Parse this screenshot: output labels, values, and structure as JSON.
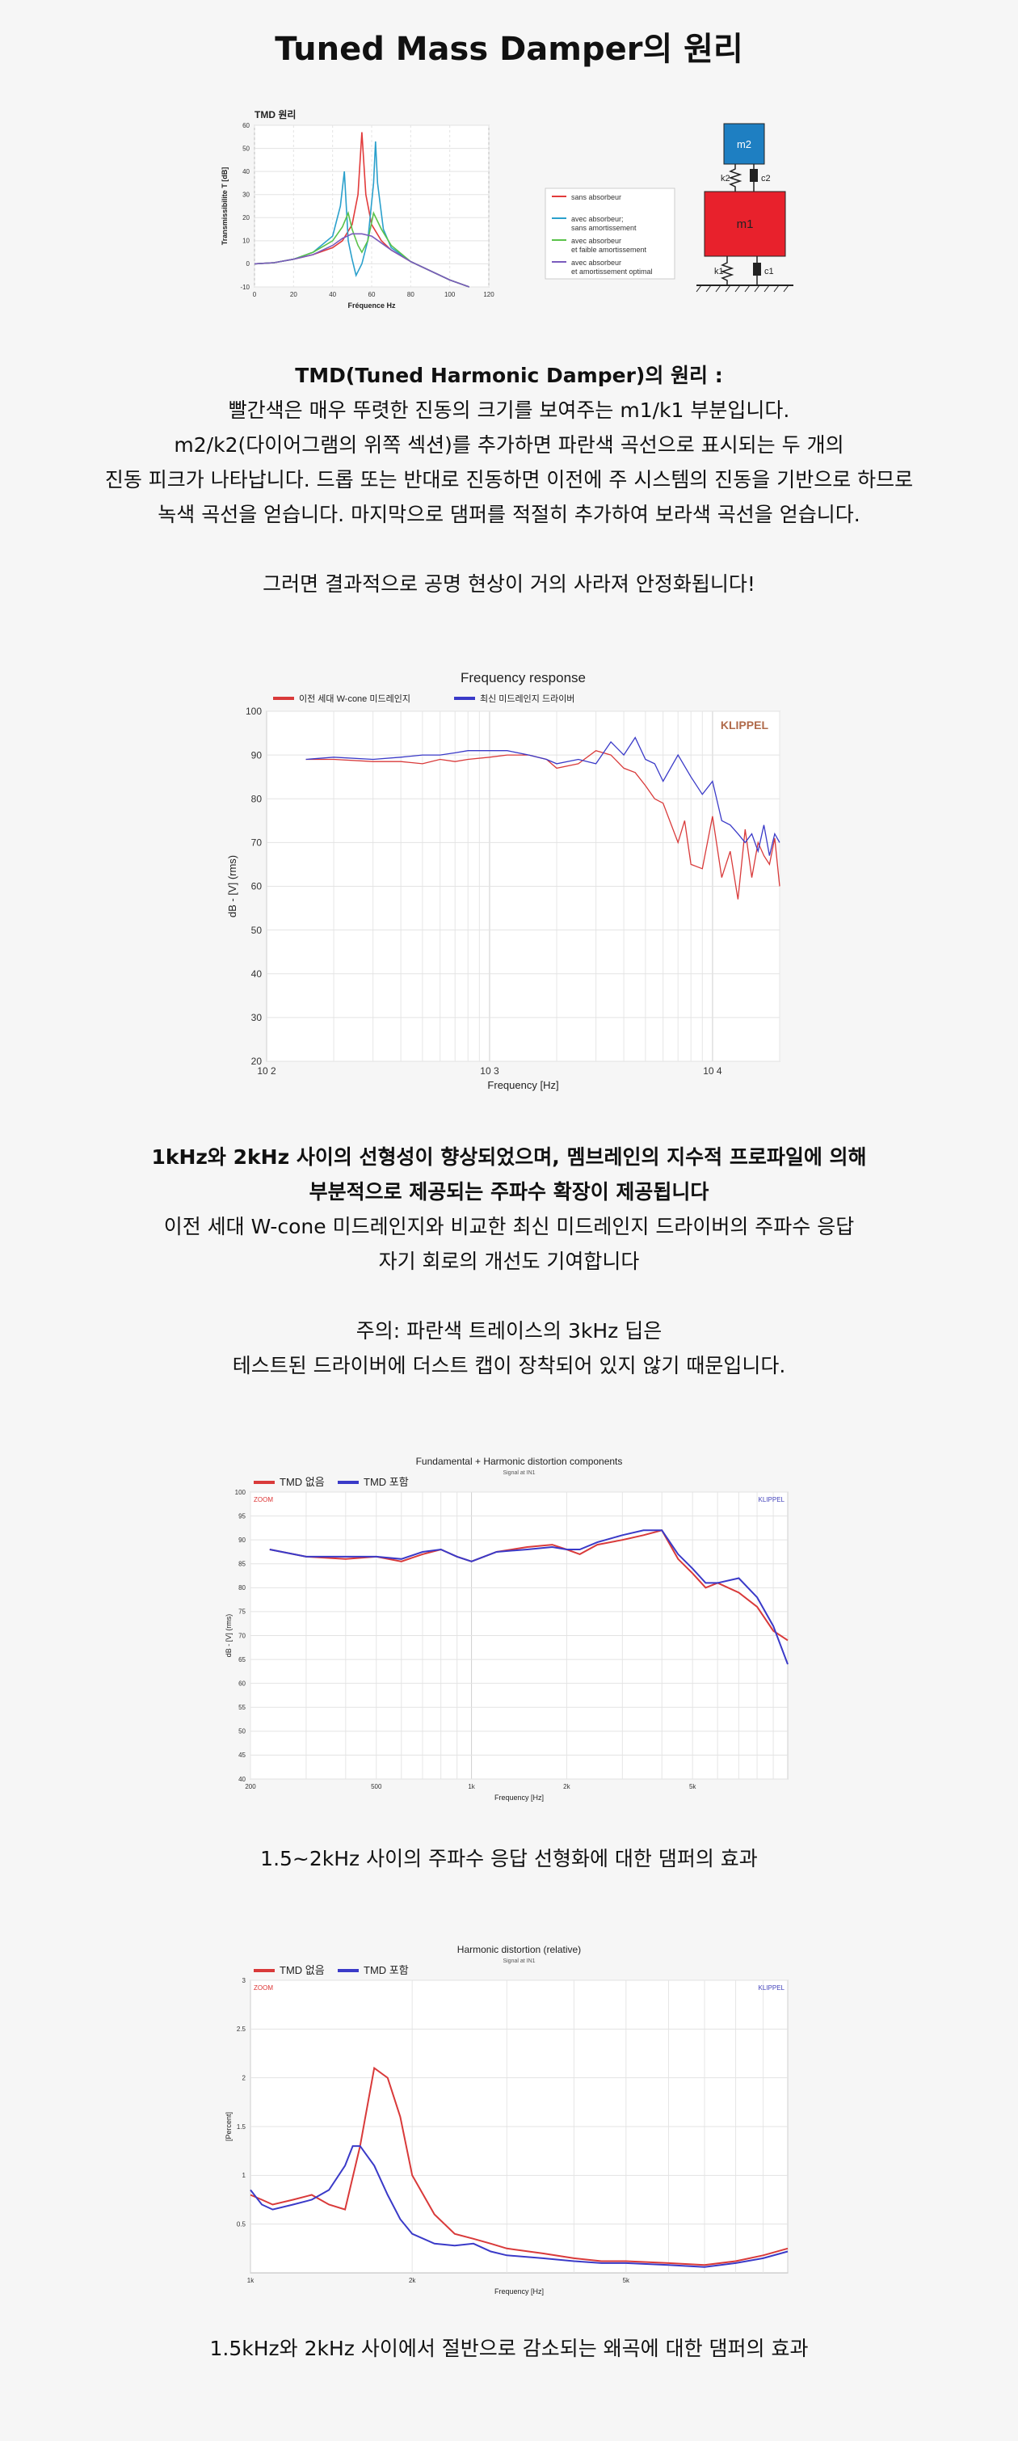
{
  "page": {
    "title": "Tuned Mass Damper의 원리",
    "tmd_heading": "TMD(Tuned Harmonic Damper)의 원리 :",
    "tmd_lines": [
      "빨간색은 매우 뚜렷한 진동의 크기를 보여주는 m1/k1 부분입니다.",
      "m2/k2(다이어그램의 위쪽 섹션)를 추가하면 파란색 곡선으로 표시되는 두 개의",
      "진동 피크가 나타납니다. 드롭 또는 반대로 진동하면 이전에 주 시스템의 진동을 기반으로 하므로",
      "녹색 곡선을 얻습니다. 마지막으로 댐퍼를 적절히 추가하여 보라색 곡선을 얻습니다."
    ],
    "tmd_result": "그러면 결과적으로 공명 현상이 거의 사라져 안정화됩니다!",
    "fr_heading_lines": [
      "1kHz와 2kHz 사이의 선형성이 향상되었으며, 멤브레인의 지수적 프로파일에 의해",
      "부분적으로 제공되는 주파수 확장이 제공됩니다"
    ],
    "fr_lines": [
      "이전 세대 W-cone 미드레인지와 비교한 최신 미드레인지 드라이버의 주파수 응답",
      "자기 회로의 개선도 기여합니다"
    ],
    "note_lines": [
      "주의: 파란색 트레이스의 3kHz 딥은",
      "테스트된 드라이버에 더스트 캡이 장착되어 있지 않기 때문입니다."
    ],
    "caption_3": "1.5~2kHz 사이의 주파수 응답 선형화에 대한 댐퍼의 효과",
    "caption_4": "1.5kHz와 2kHz 사이에서 절반으로 감소되는 왜곡에 대한 댐퍼의 효과"
  },
  "diagram": {
    "m2": "m2",
    "m1": "m1",
    "k2": "k2",
    "c2": "c2",
    "k1": "k1",
    "c1": "c1",
    "m2_color": "#1e7fc2",
    "m1_color": "#e8212c"
  },
  "chart_data": [
    {
      "type": "line",
      "title": "TMD 원리",
      "xlabel": "Fréquence Hz",
      "ylabel": "Transmissibilite T [dB]",
      "xlim": [
        0,
        120
      ],
      "ylim": [
        -10,
        60
      ],
      "xticks": [
        0,
        20,
        40,
        60,
        80,
        100,
        120
      ],
      "yticks": [
        -10,
        0,
        10,
        20,
        30,
        40,
        50,
        60
      ],
      "grid": true,
      "legend_position": "right",
      "series": [
        {
          "name": "sans absorbeur",
          "color": "#e23b3b",
          "x": [
            0,
            10,
            20,
            30,
            40,
            45,
            50,
            53,
            55,
            57,
            60,
            65,
            70,
            80,
            90,
            100,
            110
          ],
          "y": [
            0,
            0.5,
            2,
            4,
            7,
            10,
            17,
            30,
            57,
            30,
            17,
            10,
            6,
            1,
            -3,
            -7,
            -10
          ]
        },
        {
          "name": "avec absorbeur; sans amortissement",
          "color": "#2aa0cc",
          "x": [
            0,
            10,
            20,
            30,
            40,
            44,
            46,
            47,
            48,
            50,
            52,
            55,
            58,
            61,
            62,
            63,
            66,
            70,
            80,
            90,
            100,
            110
          ],
          "y": [
            0,
            0.5,
            2,
            5,
            12,
            25,
            40,
            25,
            10,
            2,
            -5,
            0,
            10,
            35,
            53,
            35,
            15,
            7,
            1,
            -3,
            -7,
            -10
          ]
        },
        {
          "name": "avec absorbeur et faible amortissement",
          "color": "#5ac24a",
          "x": [
            0,
            10,
            20,
            30,
            40,
            45,
            48,
            50,
            53,
            55,
            58,
            61,
            65,
            70,
            80,
            90,
            100,
            110
          ],
          "y": [
            0,
            0.5,
            2,
            5,
            10,
            16,
            22,
            15,
            8,
            5,
            10,
            22,
            15,
            8,
            1,
            -3,
            -7,
            -10
          ]
        },
        {
          "name": "avec absorbeur et amortissement optimal",
          "color": "#7a5bbd",
          "x": [
            0,
            10,
            20,
            30,
            40,
            45,
            50,
            55,
            60,
            65,
            70,
            80,
            90,
            100,
            110
          ],
          "y": [
            0,
            0.5,
            2,
            4,
            8,
            11,
            13,
            13,
            12,
            9,
            6,
            1,
            -3,
            -7,
            -10
          ]
        }
      ]
    },
    {
      "type": "line",
      "title": "Frequency response",
      "xlabel": "Frequency [Hz]",
      "ylabel": "dB - [V] (rms)",
      "xscale": "log",
      "xlim": [
        100,
        20000
      ],
      "ylim": [
        20,
        100
      ],
      "xtick_labels": [
        "10 2",
        "10 3",
        "10 4"
      ],
      "yticks": [
        20,
        30,
        40,
        50,
        60,
        70,
        80,
        90,
        100
      ],
      "grid": true,
      "watermark": "KLIPPEL",
      "legend_position": "top-left",
      "series": [
        {
          "name": "이전 세대 W-cone 미드레인지",
          "color": "#d93a3a",
          "x": [
            150,
            200,
            300,
            400,
            500,
            600,
            700,
            800,
            1000,
            1200,
            1500,
            1800,
            2000,
            2500,
            3000,
            3500,
            4000,
            4500,
            5000,
            5500,
            6000,
            7000,
            7500,
            8000,
            9000,
            10000,
            11000,
            12000,
            13000,
            14000,
            15000,
            16000,
            17000,
            18000,
            19000,
            20000
          ],
          "y": [
            89,
            89,
            88.5,
            88.5,
            88,
            89,
            88.5,
            89,
            89.5,
            90,
            90,
            89,
            87,
            88,
            91,
            90,
            87,
            86,
            83,
            80,
            79,
            70,
            75,
            65,
            64,
            76,
            62,
            68,
            57,
            73,
            62,
            70,
            67,
            65,
            71,
            60
          ]
        },
        {
          "name": "최신 미드레인지 드라이버",
          "color": "#3a3ac8",
          "x": [
            150,
            200,
            300,
            400,
            500,
            600,
            700,
            800,
            1000,
            1200,
            1500,
            1800,
            2000,
            2500,
            3000,
            3500,
            4000,
            4500,
            5000,
            5500,
            6000,
            7000,
            8000,
            9000,
            10000,
            11000,
            12000,
            13000,
            14000,
            15000,
            16000,
            17000,
            18000,
            19000,
            20000
          ],
          "y": [
            89,
            89.5,
            89,
            89.5,
            90,
            90,
            90.5,
            91,
            91,
            91,
            90,
            89,
            88,
            89,
            88,
            93,
            90,
            94,
            89,
            88,
            84,
            90,
            85,
            81,
            84,
            75,
            74,
            72,
            70,
            72,
            68,
            74,
            67,
            72,
            70
          ]
        }
      ]
    },
    {
      "type": "line",
      "title": "Fundamental + Harmonic distortion components",
      "subtitle": "Signal at IN1",
      "xlabel": "Frequency [Hz]",
      "ylabel": "dB - [V] (rms)",
      "xscale": "log",
      "xlim": [
        200,
        10000
      ],
      "ylim": [
        40,
        100
      ],
      "xtick_labels": [
        "200",
        "500",
        "1k",
        "2k",
        "5k"
      ],
      "yticks": [
        40,
        45,
        50,
        55,
        60,
        65,
        70,
        75,
        80,
        85,
        90,
        95,
        100
      ],
      "grid": true,
      "corner_labels": [
        "ZOOM",
        "KLIPPEL"
      ],
      "legend_position": "top-left",
      "series": [
        {
          "name": "TMD 없음",
          "color": "#d93a3a",
          "x": [
            230,
            300,
            400,
            500,
            600,
            700,
            800,
            900,
            1000,
            1200,
            1500,
            1800,
            2000,
            2200,
            2500,
            3000,
            3500,
            4000,
            4500,
            5000,
            5500,
            6000,
            7000,
            8000,
            9000,
            10000
          ],
          "y": [
            88,
            86.5,
            86,
            86.5,
            85.5,
            87,
            88,
            86.5,
            85.5,
            87.5,
            88.5,
            89,
            88,
            87,
            89,
            90,
            91,
            92,
            86,
            83,
            80,
            81,
            79,
            76,
            71,
            69
          ]
        },
        {
          "name": "TMD 포함",
          "color": "#3a3ac8",
          "x": [
            230,
            300,
            400,
            500,
            600,
            700,
            800,
            900,
            1000,
            1200,
            1500,
            1800,
            2000,
            2200,
            2500,
            3000,
            3500,
            4000,
            4500,
            5000,
            5500,
            6000,
            7000,
            8000,
            9000,
            10000
          ],
          "y": [
            88,
            86.5,
            86.5,
            86.5,
            86,
            87.5,
            88,
            86.5,
            85.5,
            87.5,
            88,
            88.5,
            88,
            88,
            89.5,
            91,
            92,
            92,
            87,
            84,
            81,
            81,
            82,
            78,
            72,
            64
          ]
        }
      ]
    },
    {
      "type": "line",
      "title": "Harmonic distortion (relative)",
      "subtitle": "Signal at IN1",
      "xlabel": "Frequency [Hz]",
      "ylabel": "[Percent]",
      "xscale": "log",
      "xlim": [
        1000,
        10000
      ],
      "ylim": [
        0,
        3
      ],
      "xtick_labels": [
        "1k",
        "2k",
        "5k"
      ],
      "yticks": [
        0.5,
        1,
        1.5,
        2,
        2.5,
        3
      ],
      "grid": true,
      "corner_labels": [
        "ZOOM",
        "KLIPPEL"
      ],
      "legend_position": "top-left",
      "series": [
        {
          "name": "TMD 없음",
          "color": "#d93a3a",
          "x": [
            1000,
            1050,
            1100,
            1200,
            1300,
            1400,
            1500,
            1600,
            1700,
            1800,
            1900,
            2000,
            2200,
            2400,
            2600,
            2800,
            3000,
            3500,
            4000,
            4500,
            5000,
            6000,
            7000,
            8000,
            9000,
            10000
          ],
          "y": [
            0.8,
            0.75,
            0.7,
            0.75,
            0.8,
            0.7,
            0.65,
            1.3,
            2.1,
            2.0,
            1.6,
            1.0,
            0.6,
            0.4,
            0.35,
            0.3,
            0.25,
            0.2,
            0.15,
            0.12,
            0.12,
            0.1,
            0.08,
            0.12,
            0.18,
            0.25
          ]
        },
        {
          "name": "TMD 포함",
          "color": "#3a3ac8",
          "x": [
            1000,
            1050,
            1100,
            1200,
            1300,
            1400,
            1500,
            1550,
            1600,
            1700,
            1800,
            1900,
            2000,
            2200,
            2400,
            2600,
            2800,
            3000,
            3500,
            4000,
            4500,
            5000,
            6000,
            7000,
            8000,
            9000,
            10000
          ],
          "y": [
            0.85,
            0.7,
            0.65,
            0.7,
            0.75,
            0.85,
            1.1,
            1.3,
            1.3,
            1.1,
            0.8,
            0.55,
            0.4,
            0.3,
            0.28,
            0.3,
            0.22,
            0.18,
            0.15,
            0.12,
            0.1,
            0.1,
            0.08,
            0.06,
            0.1,
            0.15,
            0.22
          ]
        }
      ]
    }
  ]
}
